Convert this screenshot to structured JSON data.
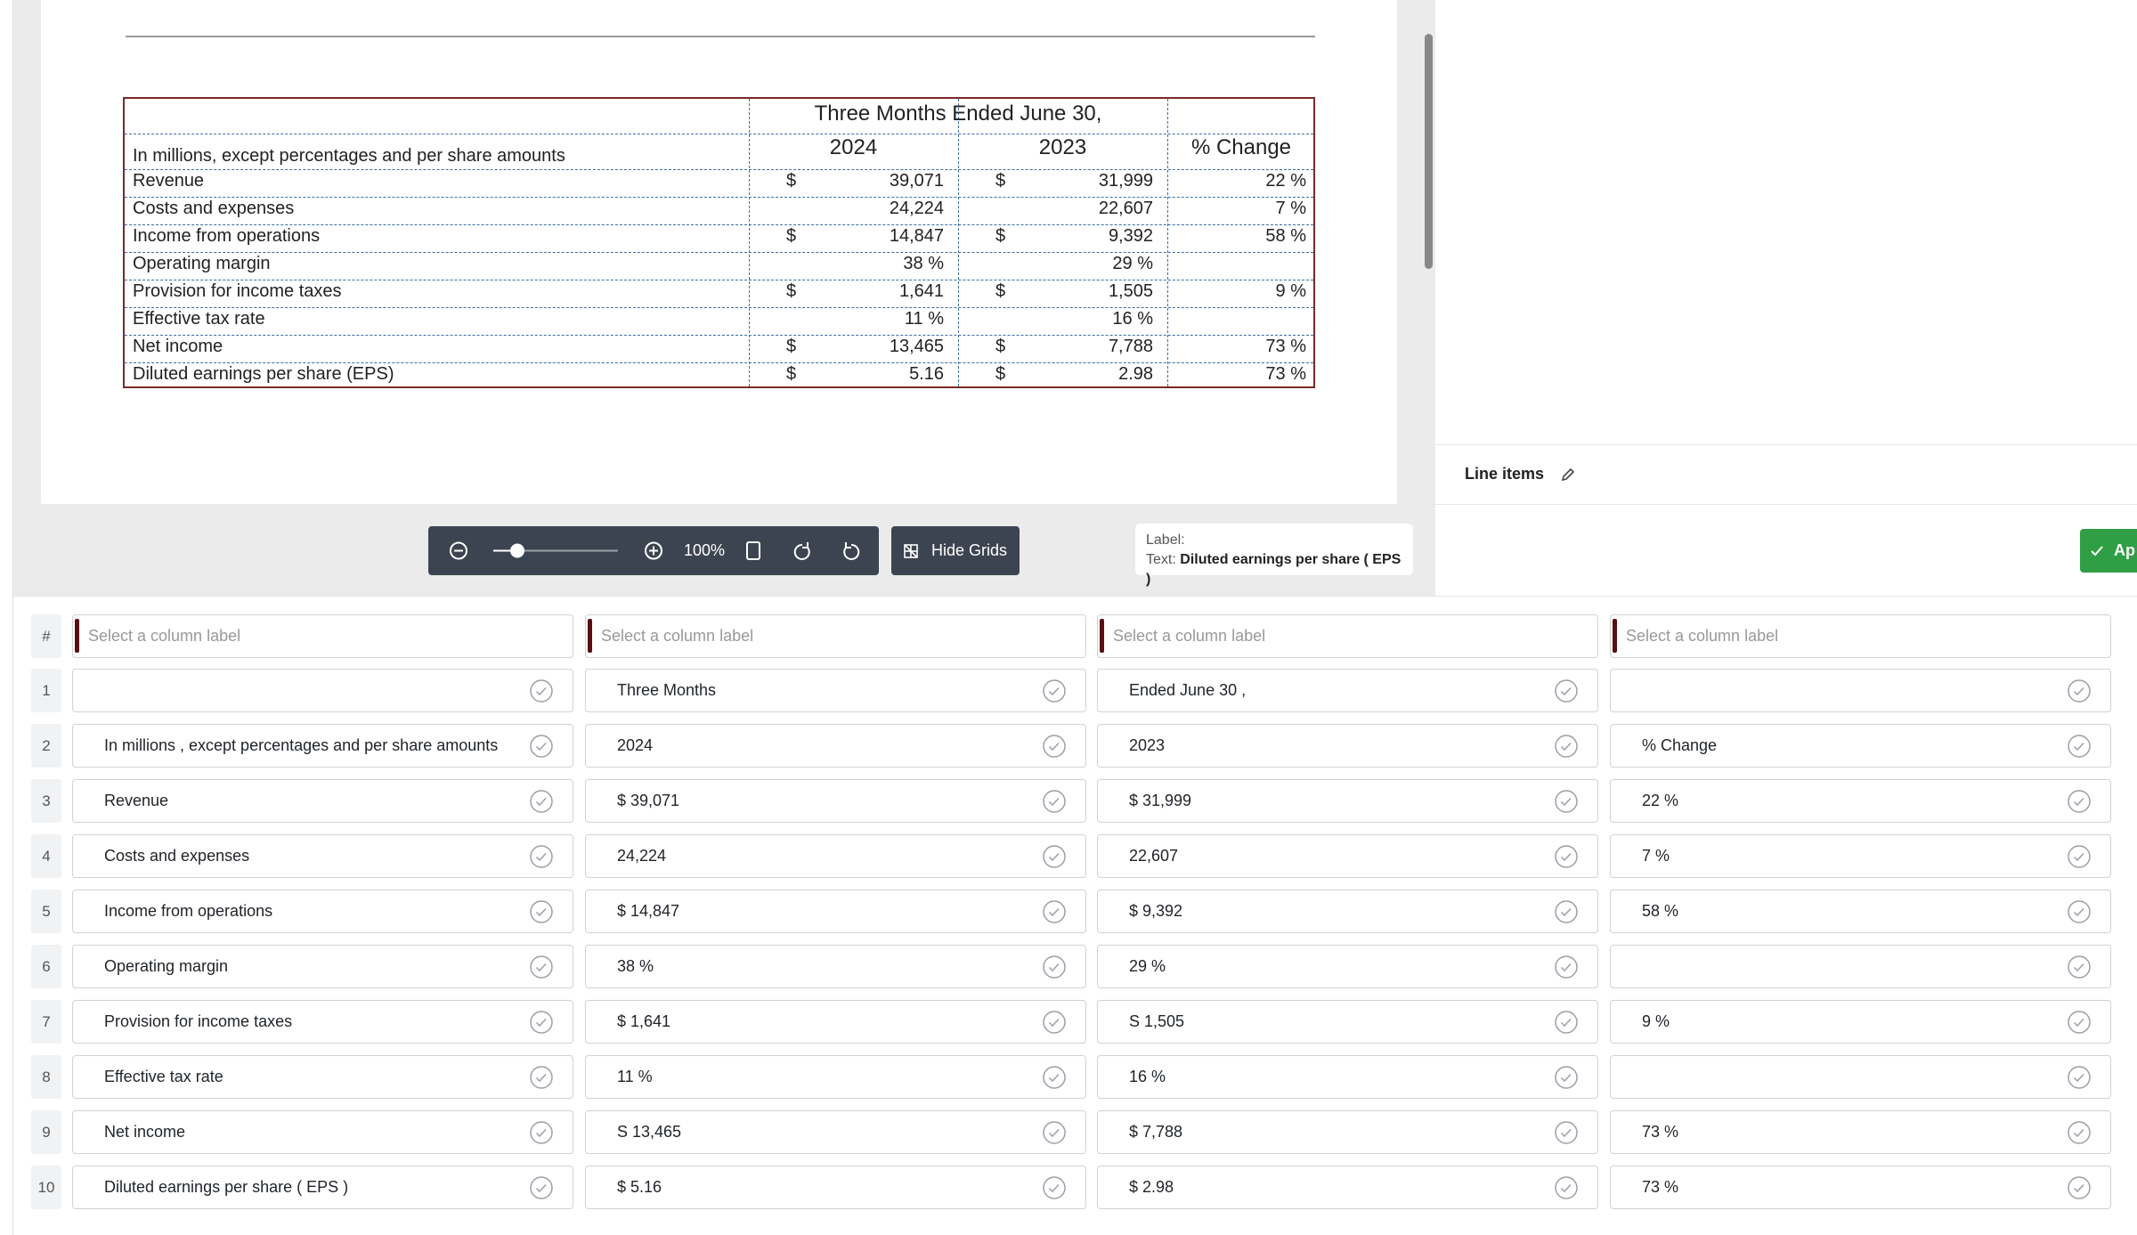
{
  "document_table": {
    "header_top": "Three Months Ended June 30,",
    "header": [
      "In millions, except percentages and per share amounts",
      "2024",
      "2023",
      "% Change"
    ],
    "rows": [
      [
        "Revenue",
        "$",
        "39,071",
        "$",
        "31,999",
        "22 %"
      ],
      [
        "Costs and expenses",
        null,
        "24,224",
        null,
        "22,607",
        "7 %"
      ],
      [
        "Income from operations",
        "$",
        "14,847",
        "$",
        "9,392",
        "58 %"
      ],
      [
        "Operating margin",
        null,
        "38 %",
        null,
        "29 %",
        null
      ],
      [
        "Provision for income taxes",
        "$",
        "1,641",
        "$",
        "1,505",
        "9 %"
      ],
      [
        "Effective tax rate",
        null,
        "11 %",
        null,
        "16 %",
        null
      ],
      [
        "Net income",
        "$",
        "13,465",
        "$",
        "7,788",
        "73 %"
      ],
      [
        "Diluted earnings per share (EPS)",
        "$",
        "5.16",
        "$",
        "2.98",
        "73 %"
      ]
    ]
  },
  "toolbar": {
    "zoom": "100%",
    "hide_grids": "Hide Grids"
  },
  "label_box": {
    "label": "Label:",
    "text_prefix": "Text:",
    "text": "Diluted earnings per share ( EPS )"
  },
  "side_panel": {
    "line_items": "Line items",
    "apply": "Ap"
  },
  "grid": {
    "hash": "#",
    "column_labels": [
      "Select a column label",
      "Select a column label",
      "Select a column label",
      "Select a column label"
    ],
    "rows": [
      {
        "number": 1,
        "cells": [
          null,
          "Three Months",
          "Ended June 30 ,",
          null
        ]
      },
      {
        "number": 2,
        "cells": [
          "In millions , except percentages and per share amounts",
          "2024",
          "2023",
          "% Change"
        ]
      },
      {
        "number": 3,
        "cells": [
          "Revenue",
          "$ 39,071",
          "$ 31,999",
          "22 %"
        ]
      },
      {
        "number": 4,
        "cells": [
          "Costs and expenses",
          "24,224",
          "22,607",
          "7 %"
        ]
      },
      {
        "number": 5,
        "cells": [
          "Income from operations",
          "$ 14,847",
          "$ 9,392",
          "58 %"
        ]
      },
      {
        "number": 6,
        "cells": [
          "Operating margin",
          "38 %",
          "29 %",
          null
        ]
      },
      {
        "number": 7,
        "cells": [
          "Provision for income taxes",
          "$ 1,641",
          "S 1,505",
          "9 %"
        ]
      },
      {
        "number": 8,
        "cells": [
          "Effective tax rate",
          "11 %",
          "16 %",
          null
        ]
      },
      {
        "number": 9,
        "cells": [
          "Net income",
          "S 13,465",
          "$ 7,788",
          "73 %"
        ]
      },
      {
        "number": 10,
        "cells": [
          "Diluted earnings per share ( EPS )",
          "$ 5.16",
          "$ 2.98",
          "73 %"
        ]
      }
    ]
  }
}
